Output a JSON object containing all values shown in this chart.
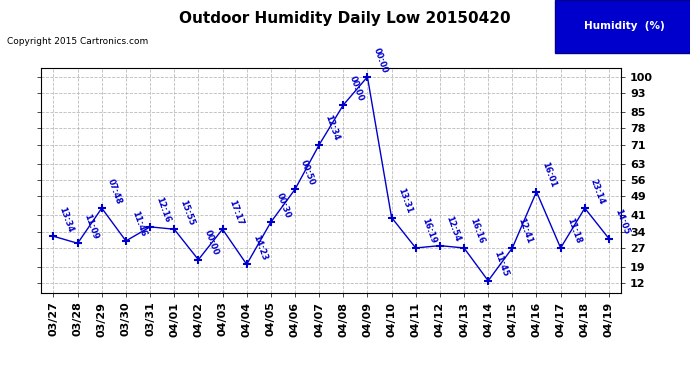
{
  "title": "Outdoor Humidity Daily Low 20150420",
  "copyright": "Copyright 2015 Cartronics.com",
  "legend_label": "Humidity  (%)",
  "dates": [
    "03/27",
    "03/28",
    "03/29",
    "03/30",
    "03/31",
    "04/01",
    "04/02",
    "04/03",
    "04/04",
    "04/05",
    "04/06",
    "04/07",
    "04/08",
    "04/09",
    "04/10",
    "04/11",
    "04/12",
    "04/13",
    "04/14",
    "04/15",
    "04/16",
    "04/17",
    "04/18",
    "04/19"
  ],
  "values": [
    32,
    29,
    44,
    30,
    36,
    35,
    22,
    35,
    20,
    38,
    52,
    71,
    88,
    100,
    40,
    27,
    28,
    27,
    13,
    27,
    51,
    27,
    44,
    31
  ],
  "times": [
    "13:34",
    "11:09",
    "07:48",
    "11:46",
    "12:16",
    "15:55",
    "00:00",
    "17:17",
    "14:23",
    "00:30",
    "00:50",
    "12:34",
    "00:00",
    "00:00",
    "13:31",
    "16:19",
    "12:54",
    "16:16",
    "11:45",
    "12:41",
    "16:01",
    "11:18",
    "23:14",
    "14:05"
  ],
  "yticks": [
    12,
    19,
    27,
    34,
    41,
    49,
    56,
    63,
    71,
    78,
    85,
    93,
    100
  ],
  "line_color": "#0000cc",
  "marker_color": "#0000cc",
  "bg_color": "#ffffff",
  "grid_color": "#bbbbbb",
  "title_color": "#000000",
  "legend_bg": "#0000cc",
  "legend_fg": "#ffffff",
  "copyright_color": "#000000"
}
